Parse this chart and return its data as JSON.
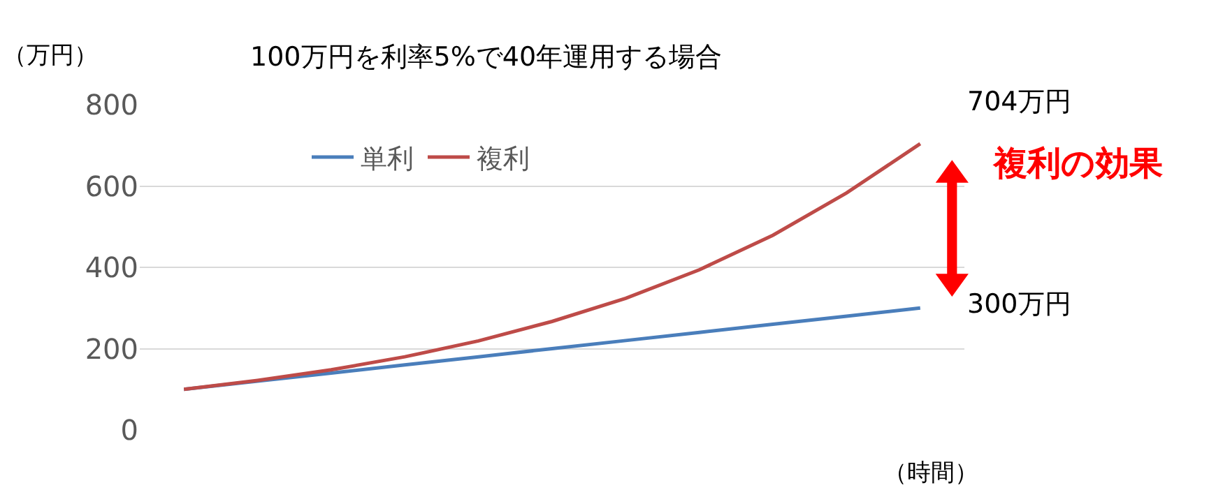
{
  "chart_data": {
    "type": "line",
    "title": "100万円を利率5%で40年運用する場合",
    "ylabel": "（万円）",
    "xlabel": "（時間）",
    "categories": [
      null,
      null,
      null,
      null,
      null,
      null,
      null,
      null,
      null,
      null,
      null
    ],
    "series": [
      {
        "name": "単利",
        "color": "#4a7ebb",
        "values": [
          100,
          120,
          140,
          160,
          180,
          200,
          220,
          240,
          260,
          280,
          300
        ]
      },
      {
        "name": "複利",
        "color": "#be4b48",
        "values": [
          100,
          122,
          148,
          180,
          219,
          267,
          324,
          394,
          479,
          583,
          704
        ]
      }
    ],
    "annotations": [
      "704万円",
      "300万円",
      "複利の効果"
    ],
    "ylim": [
      0,
      800
    ],
    "yticks": [
      0,
      200,
      400,
      600,
      800
    ],
    "grid": "y",
    "legend": "top left",
    "tick_labels": "y",
    "marker": "none",
    "line_style": "solid"
  }
}
